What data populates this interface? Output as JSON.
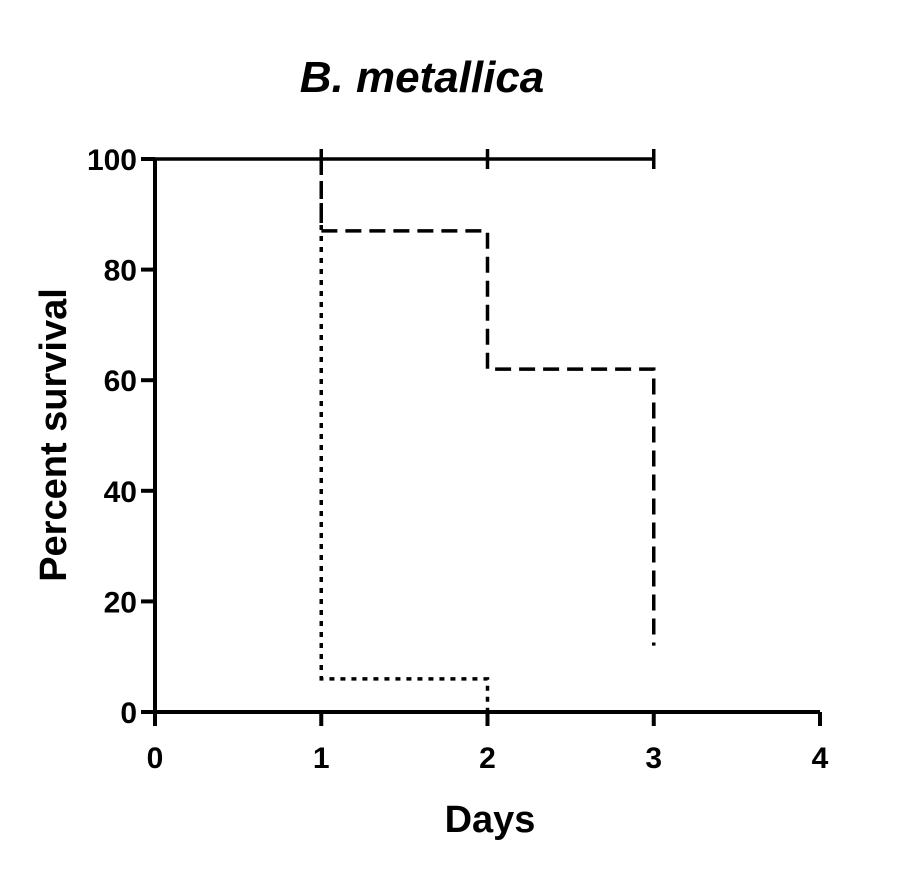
{
  "chart_data": {
    "type": "line",
    "title": "B. metallica",
    "xlabel": "Days",
    "ylabel": "Percent survival",
    "xlim": [
      0,
      4
    ],
    "ylim": [
      0,
      100
    ],
    "x_ticks": [
      "0",
      "1",
      "2",
      "3",
      "4"
    ],
    "y_ticks": [
      "0",
      "20",
      "40",
      "60",
      "80",
      "100"
    ],
    "grid": false,
    "legend": "none",
    "step": true,
    "series": [
      {
        "line_style": "solid",
        "color": "#000000",
        "points": [
          [
            0,
            100
          ],
          [
            3,
            100
          ]
        ],
        "censor_marks_x": [
          1,
          2,
          3
        ]
      },
      {
        "line_style": "dashed",
        "color": "#000000",
        "points": [
          [
            1,
            100
          ],
          [
            1,
            87
          ],
          [
            2,
            87
          ],
          [
            2,
            62
          ],
          [
            3,
            62
          ],
          [
            3,
            12
          ]
        ]
      },
      {
        "line_style": "dotted",
        "color": "#000000",
        "points": [
          [
            1,
            100
          ],
          [
            1,
            6
          ],
          [
            2,
            6
          ],
          [
            2,
            0
          ]
        ]
      }
    ]
  }
}
